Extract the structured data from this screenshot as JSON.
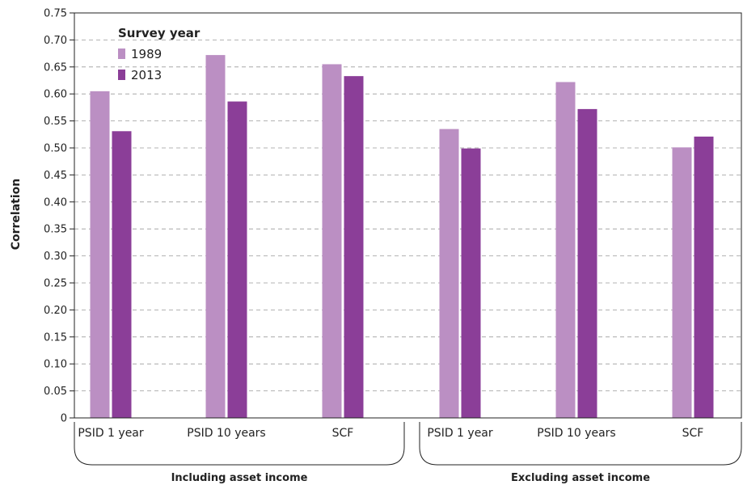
{
  "chart_data": {
    "type": "bar",
    "ylabel": "Correlation",
    "ylim": [
      0,
      0.75
    ],
    "yticks": [
      "0",
      "0.05",
      "0.10",
      "0.15",
      "0.20",
      "0.25",
      "0.30",
      "0.35",
      "0.40",
      "0.45",
      "0.50",
      "0.55",
      "0.60",
      "0.65",
      "0.70",
      "0.75"
    ],
    "grid": true,
    "legend": {
      "title": "Survey year",
      "placement": "top-left"
    },
    "groups": [
      {
        "label": "Including asset income",
        "categories": [
          "PSID 1 year",
          "PSID 10 years",
          "SCF"
        ]
      },
      {
        "label": "Excluding asset income",
        "categories": [
          "PSID 1 year",
          "PSID 10 years",
          "SCF"
        ]
      }
    ],
    "categories": [
      "PSID 1 year",
      "PSID 10 years",
      "SCF",
      "PSID 1 year",
      "PSID 10 years",
      "SCF"
    ],
    "series": [
      {
        "name": "1989",
        "color": "#bb8fc3",
        "values": [
          0.605,
          0.672,
          0.655,
          0.535,
          0.622,
          0.501
        ]
      },
      {
        "name": "2013",
        "color": "#8b3e98",
        "values": [
          0.531,
          0.586,
          0.633,
          0.499,
          0.572,
          0.521
        ]
      }
    ]
  }
}
